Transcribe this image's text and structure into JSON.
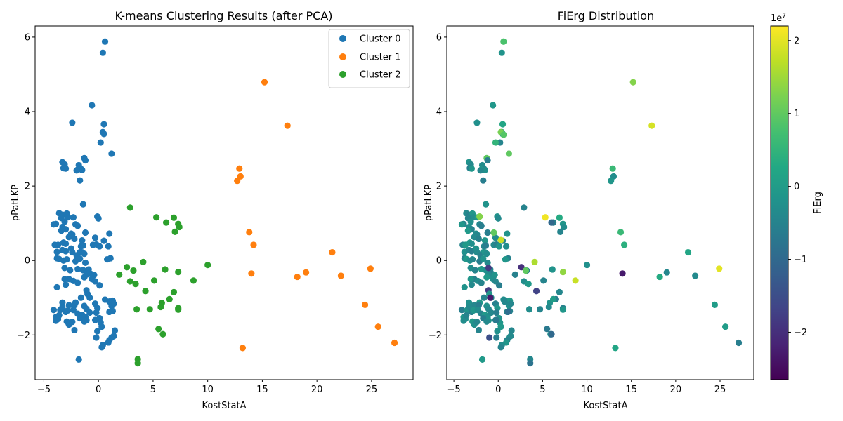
{
  "colors": {
    "cluster0": "#1f77b4",
    "cluster1": "#ff7f0e",
    "cluster2": "#2ca02c"
  },
  "chart_data": [
    {
      "type": "scatter",
      "title": "K-means Clustering Results (after PCA)",
      "xlabel": "KostStatA",
      "ylabel": "pPatLKP",
      "xlim": [
        -5.8,
        28.8
      ],
      "ylim": [
        -3.2,
        6.3
      ],
      "xticks": [
        -5,
        0,
        5,
        10,
        15,
        20,
        25
      ],
      "yticks": [
        -2,
        0,
        2,
        4,
        6
      ],
      "grid": false,
      "legend": "top-right",
      "series": [
        {
          "name": "Cluster 0",
          "points": [
            [
              0.6,
              5.88
            ],
            [
              0.4,
              5.58
            ],
            [
              -0.6,
              4.17
            ],
            [
              0.5,
              3.66
            ],
            [
              0.4,
              3.45
            ],
            [
              0.5,
              3.4
            ],
            [
              0.2,
              3.17
            ],
            [
              1.2,
              2.87
            ],
            [
              -2.4,
              3.7
            ],
            [
              -1.3,
              2.75
            ],
            [
              -1.2,
              2.69
            ],
            [
              -3.3,
              2.64
            ],
            [
              -3.1,
              2.58
            ],
            [
              -3.2,
              2.48
            ],
            [
              -3.0,
              2.47
            ],
            [
              -1.8,
              2.56
            ],
            [
              -1.6,
              2.46
            ],
            [
              -1.9,
              2.44
            ],
            [
              -1.5,
              2.43
            ],
            [
              -2.0,
              2.42
            ],
            [
              -1.7,
              2.15
            ],
            [
              -1.4,
              1.51
            ],
            [
              -3.6,
              1.27
            ],
            [
              -3.3,
              1.23
            ],
            [
              -2.9,
              1.26
            ],
            [
              -2.8,
              1.16
            ],
            [
              -3.4,
              1.14
            ],
            [
              -2.3,
              1.16
            ],
            [
              -3.1,
              1.04
            ],
            [
              -2.1,
              0.97
            ],
            [
              -1.9,
              0.93
            ],
            [
              -0.1,
              1.18
            ],
            [
              0.0,
              1.13
            ],
            [
              -3.9,
              0.98
            ],
            [
              -4.1,
              0.97
            ],
            [
              -3.3,
              0.9
            ],
            [
              -3.0,
              0.84
            ],
            [
              -3.4,
              0.8
            ],
            [
              -2.5,
              0.72
            ],
            [
              -2.4,
              0.7
            ],
            [
              -1.2,
              0.75
            ],
            [
              1.0,
              0.72
            ],
            [
              -2.7,
              0.63
            ],
            [
              -2.2,
              0.58
            ],
            [
              -1.5,
              0.54
            ],
            [
              -0.3,
              0.61
            ],
            [
              0.5,
              0.53
            ],
            [
              -3.2,
              0.48
            ],
            [
              -3.0,
              0.45
            ],
            [
              -1.6,
              0.38
            ],
            [
              -1.4,
              0.4
            ],
            [
              -1.7,
              0.22
            ],
            [
              -0.5,
              0.42
            ],
            [
              -0.2,
              0.43
            ],
            [
              0.1,
              0.38
            ],
            [
              0.9,
              0.38
            ],
            [
              -4.0,
              0.42
            ],
            [
              -3.7,
              0.42
            ],
            [
              -3.8,
              0.23
            ],
            [
              -3.3,
              0.28
            ],
            [
              -3.0,
              0.25
            ],
            [
              -2.5,
              0.32
            ],
            [
              -2.4,
              0.22
            ],
            [
              -2.0,
              0.14
            ],
            [
              -1.5,
              0.22
            ],
            [
              -1.3,
              0.18
            ],
            [
              -3.8,
              0.06
            ],
            [
              -3.6,
              0.04
            ],
            [
              -3.2,
              0.0
            ],
            [
              -2.9,
              0.03
            ],
            [
              -2.1,
              -0.02
            ],
            [
              -1.7,
              0.05
            ],
            [
              -1.2,
              -0.06
            ],
            [
              1.1,
              0.06
            ],
            [
              0.8,
              0.03
            ],
            [
              -3.1,
              -0.2
            ],
            [
              -2.6,
              -0.26
            ],
            [
              -1.9,
              -0.23
            ],
            [
              -1.4,
              -0.26
            ],
            [
              -0.9,
              -0.24
            ],
            [
              -0.7,
              -0.36
            ],
            [
              -0.4,
              -0.39
            ],
            [
              -1.1,
              -0.38
            ],
            [
              -2.7,
              -0.5
            ],
            [
              -3.1,
              -0.5
            ],
            [
              -2.3,
              -0.55
            ],
            [
              -1.9,
              -0.6
            ],
            [
              -1.3,
              -0.45
            ],
            [
              -0.6,
              -0.5
            ],
            [
              -0.3,
              -0.56
            ],
            [
              0.1,
              -0.67
            ],
            [
              -3.8,
              -0.72
            ],
            [
              -3.0,
              -0.65
            ],
            [
              -1.1,
              -0.8
            ],
            [
              -1.0,
              -0.9
            ],
            [
              -0.8,
              -1.0
            ],
            [
              -1.6,
              -1.0
            ],
            [
              -2.1,
              -1.13
            ],
            [
              -3.3,
              -1.13
            ],
            [
              -2.7,
              -1.2
            ],
            [
              -2.2,
              -1.2
            ],
            [
              -1.3,
              -1.22
            ],
            [
              -1.1,
              -1.3
            ],
            [
              -0.3,
              -1.16
            ],
            [
              -0.1,
              -1.28
            ],
            [
              0.6,
              -1.05
            ],
            [
              1.0,
              -1.1
            ],
            [
              1.3,
              -1.08
            ],
            [
              1.2,
              -1.22
            ],
            [
              1.4,
              -1.16
            ],
            [
              -4.1,
              -1.33
            ],
            [
              -3.5,
              -1.33
            ],
            [
              -3.3,
              -1.25
            ],
            [
              -3.0,
              -1.38
            ],
            [
              -2.8,
              -1.34
            ],
            [
              -2.3,
              -1.33
            ],
            [
              -1.9,
              -1.43
            ],
            [
              -1.5,
              -1.46
            ],
            [
              -1.2,
              -1.52
            ],
            [
              -0.8,
              -1.4
            ],
            [
              -0.2,
              -1.4
            ],
            [
              0.1,
              -1.55
            ],
            [
              1.0,
              -1.38
            ],
            [
              1.3,
              -1.36
            ],
            [
              -3.9,
              -1.52
            ],
            [
              -3.7,
              -1.57
            ],
            [
              -3.6,
              -1.47
            ],
            [
              -2.9,
              -1.64
            ],
            [
              -2.7,
              -1.72
            ],
            [
              -2.4,
              -1.65
            ],
            [
              -1.7,
              -1.55
            ],
            [
              -1.1,
              -1.61
            ],
            [
              -1.3,
              -1.64
            ],
            [
              -0.3,
              -1.6
            ],
            [
              0.2,
              -1.67
            ],
            [
              -3.9,
              -1.62
            ],
            [
              -2.2,
              -1.87
            ],
            [
              0.3,
              -1.78
            ],
            [
              -0.1,
              -1.9
            ],
            [
              1.5,
              -1.88
            ],
            [
              -0.2,
              -2.07
            ],
            [
              1.2,
              -2.07
            ],
            [
              1.4,
              -2.03
            ],
            [
              1.0,
              -2.14
            ],
            [
              0.9,
              -2.2
            ],
            [
              0.4,
              -2.27
            ],
            [
              0.3,
              -2.33
            ],
            [
              -1.8,
              -2.66
            ]
          ]
        },
        {
          "name": "Cluster 1",
          "points": [
            [
              15.2,
              4.79
            ],
            [
              17.3,
              3.62
            ],
            [
              12.9,
              2.47
            ],
            [
              13.0,
              2.26
            ],
            [
              12.7,
              2.14
            ],
            [
              13.8,
              0.76
            ],
            [
              14.2,
              0.42
            ],
            [
              21.4,
              0.22
            ],
            [
              14.0,
              -0.35
            ],
            [
              19.0,
              -0.32
            ],
            [
              18.2,
              -0.44
            ],
            [
              24.9,
              -0.22
            ],
            [
              22.2,
              -0.41
            ],
            [
              24.4,
              -1.19
            ],
            [
              25.6,
              -1.78
            ],
            [
              13.2,
              -2.35
            ],
            [
              27.1,
              -2.21
            ]
          ]
        },
        {
          "name": "Cluster 2",
          "points": [
            [
              2.9,
              1.42
            ],
            [
              5.3,
              1.16
            ],
            [
              6.9,
              1.15
            ],
            [
              6.2,
              1.02
            ],
            [
              7.3,
              0.98
            ],
            [
              7.4,
              0.9
            ],
            [
              7.0,
              0.77
            ],
            [
              4.1,
              -0.04
            ],
            [
              10.0,
              -0.12
            ],
            [
              2.6,
              -0.18
            ],
            [
              3.2,
              -0.27
            ],
            [
              6.1,
              -0.24
            ],
            [
              7.3,
              -0.31
            ],
            [
              1.9,
              -0.38
            ],
            [
              8.7,
              -0.54
            ],
            [
              2.9,
              -0.56
            ],
            [
              5.1,
              -0.54
            ],
            [
              3.4,
              -0.63
            ],
            [
              4.3,
              -0.82
            ],
            [
              6.9,
              -0.85
            ],
            [
              6.5,
              -1.04
            ],
            [
              5.8,
              -1.14
            ],
            [
              5.7,
              -1.25
            ],
            [
              7.3,
              -1.28
            ],
            [
              7.3,
              -1.32
            ],
            [
              3.5,
              -1.31
            ],
            [
              4.7,
              -1.31
            ],
            [
              5.5,
              -1.84
            ],
            [
              5.9,
              -1.98
            ],
            [
              3.6,
              -2.65
            ],
            [
              3.6,
              -2.76
            ]
          ]
        }
      ]
    },
    {
      "type": "scatter",
      "title": "FiErg Distribution",
      "xlabel": "KostStatA",
      "ylabel": "pPatLKP",
      "xlim": [
        -5.8,
        28.8
      ],
      "ylim": [
        -3.2,
        6.3
      ],
      "xticks": [
        -5,
        0,
        5,
        10,
        15,
        20,
        25
      ],
      "yticks": [
        -2,
        0,
        2,
        4,
        6
      ],
      "grid": false,
      "colorbar": {
        "label": "FiErg",
        "min": -26500000,
        "max": 22000000,
        "ticks": [
          -2,
          -1,
          0,
          1,
          2
        ],
        "multiplier": "1e7",
        "colormap": "viridis"
      },
      "highlight_points": [
        [
          0.6,
          5.88,
          0.8
        ],
        [
          15.2,
          4.79,
          1.3
        ],
        [
          17.3,
          3.62,
          1.9
        ],
        [
          12.9,
          2.47,
          0.6
        ],
        [
          13.0,
          2.26,
          -0.3
        ],
        [
          0.3,
          3.45,
          1.2
        ],
        [
          0.6,
          3.38,
          0.9
        ],
        [
          -1.3,
          2.75,
          1.0
        ],
        [
          -2.1,
          1.18,
          1.3
        ],
        [
          -0.5,
          0.75,
          1.0
        ],
        [
          0.3,
          0.55,
          1.8
        ],
        [
          5.3,
          1.16,
          2.1
        ],
        [
          6.0,
          1.02,
          -1.0
        ],
        [
          4.1,
          -0.04,
          1.6
        ],
        [
          7.3,
          -0.31,
          1.4
        ],
        [
          8.7,
          -0.54,
          1.8
        ],
        [
          24.9,
          -0.22,
          2.0
        ],
        [
          14.0,
          -0.35,
          -2.3
        ],
        [
          2.6,
          -0.18,
          -2.0
        ],
        [
          4.3,
          -0.82,
          -1.7
        ],
        [
          -1.1,
          -0.8,
          -1.8
        ],
        [
          -0.9,
          -1.0,
          -2.3
        ],
        [
          -1.1,
          -0.2,
          -1.8
        ],
        [
          -1.0,
          -2.07,
          -1.5
        ],
        [
          6.0,
          -1.98,
          -1.0
        ],
        [
          5.5,
          -1.84,
          -0.7
        ],
        [
          3.6,
          -2.76,
          -0.8
        ],
        [
          0.7,
          -1.1,
          -0.4
        ],
        [
          -0.2,
          -1.6,
          -0.7
        ],
        [
          1.1,
          -1.38,
          -0.9
        ],
        [
          -0.6,
          4.17,
          -0.1
        ],
        [
          1.2,
          2.87,
          1.0
        ],
        [
          0.5,
          3.66,
          0.2
        ],
        [
          -0.3,
          3.17,
          0.5
        ],
        [
          2.9,
          1.42,
          -0.5
        ],
        [
          6.9,
          1.15,
          0.3
        ],
        [
          6.2,
          -1.04,
          0.0
        ],
        [
          3.1,
          -0.27,
          1.0
        ],
        [
          21.4,
          0.22,
          0.2
        ],
        [
          18.2,
          -0.44,
          0.3
        ],
        [
          24.4,
          -1.19,
          0.0
        ],
        [
          25.6,
          -1.78,
          0.0
        ],
        [
          13.2,
          -2.35,
          0.2
        ],
        [
          27.1,
          -2.21,
          -0.6
        ],
        [
          13.8,
          0.76,
          0.6
        ],
        [
          14.2,
          0.42,
          0.4
        ]
      ]
    }
  ]
}
